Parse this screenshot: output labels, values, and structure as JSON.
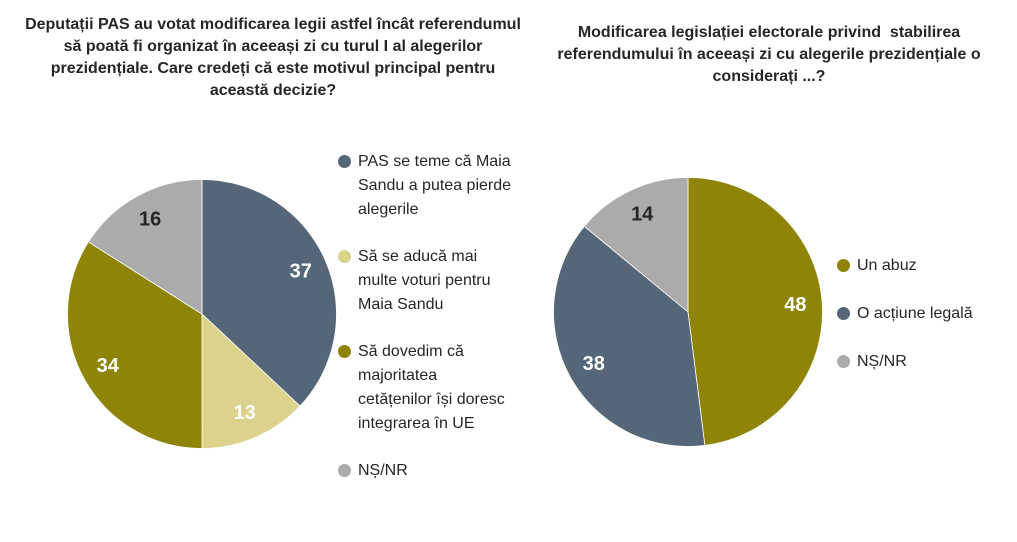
{
  "chart_data": [
    {
      "type": "pie",
      "title": "Deputații PAS au votat modificarea legii astfel încât referendumul să poată fi organizat în aceeași zi cu turul I al alegerilor prezidențiale. Care credeți că este motivul principal pentru această decizie?",
      "categories": [
        "PAS se teme că Maia Sandu a putea pierde alegerile",
        "Să se aducă mai multe voturi pentru Maia Sandu",
        "Să dovedim că majoritatea cetățenilor își doresc integrarea în UE",
        "NȘ/NR"
      ],
      "values": [
        37,
        13,
        34,
        16
      ],
      "colors": [
        "#556678",
        "#DBD28B",
        "#8E8408",
        "#ABABAB"
      ],
      "value_label_colors": [
        "#ffffff",
        "#ffffff",
        "#ffffff",
        "#262626"
      ],
      "start_angle_deg": 0,
      "direction": "clockwise",
      "legend_position": "right",
      "units": "percent"
    },
    {
      "type": "pie",
      "title": "Modificarea legislației electorale privind  stabilirea referendumului în aceeași zi cu alegerile prezidențiale o considerați ...?",
      "categories": [
        "Un abuz",
        "O acțiune legală",
        "NȘ/NR"
      ],
      "values": [
        48,
        38,
        14
      ],
      "colors": [
        "#8E8408",
        "#556678",
        "#ABABAB"
      ],
      "value_label_colors": [
        "#ffffff",
        "#ffffff",
        "#262626"
      ],
      "start_angle_deg": 0,
      "direction": "clockwise",
      "legend_position": "right",
      "units": "percent"
    }
  ]
}
